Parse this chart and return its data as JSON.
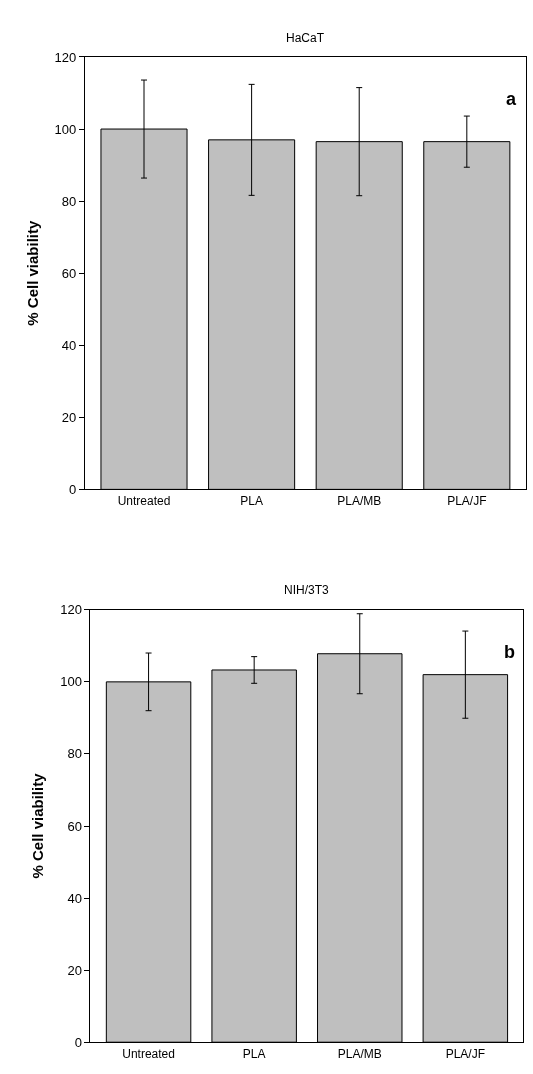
{
  "chart_data": [
    {
      "type": "bar",
      "title": "HaCaT",
      "ylabel": "% Cell viability",
      "categories": [
        "Untreated",
        "PLA",
        "PLA/MB",
        "PLA/JF"
      ],
      "values": [
        100,
        97,
        96.5,
        96.5
      ],
      "errors": [
        13.6,
        15.4,
        15,
        7.1
      ],
      "color": "#bfbfbf",
      "ylim": [
        0,
        120
      ],
      "yticks": [
        0,
        20,
        40,
        60,
        80,
        100,
        120
      ],
      "annotations": [
        "a"
      ]
    },
    {
      "type": "bar",
      "title": "NIH/3T3",
      "ylabel": "% Cell viability",
      "categories": [
        "Untreated",
        "PLA",
        "PLA/MB",
        "PLA/JF"
      ],
      "values": [
        100,
        103.3,
        107.8,
        102
      ],
      "errors": [
        8,
        3.7,
        11.1,
        12.1
      ],
      "color": "#bfbfbf",
      "ylim": [
        0,
        120
      ],
      "yticks": [
        0,
        20,
        40,
        60,
        80,
        100,
        120
      ],
      "annotations": [
        "b"
      ]
    }
  ]
}
